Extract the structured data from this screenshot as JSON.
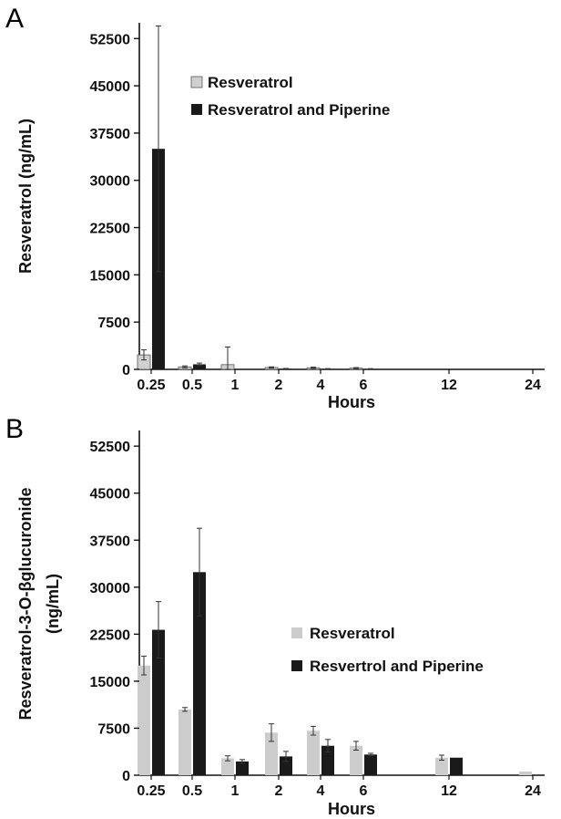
{
  "chart_data": [
    {
      "panel": "A",
      "type": "bar",
      "categories": [
        "0.25",
        "0.5",
        "1",
        "2",
        "4",
        "6",
        "12",
        "24"
      ],
      "xlabel": "Hours",
      "ylabel": "Resveratrol (ng/mL)",
      "ylim": [
        0,
        55000
      ],
      "yticks": [
        "0",
        "7500",
        "15000",
        "22500",
        "30000",
        "37500",
        "45000",
        "52500"
      ],
      "grid": false,
      "legend_position": "top-center",
      "series": [
        {
          "name": "Resveratrol",
          "color": "#d0d0d0",
          "values": [
            2300,
            400,
            750,
            300,
            250,
            200,
            0,
            0
          ],
          "errors": [
            800,
            150,
            2800,
            100,
            100,
            80,
            0,
            0
          ]
        },
        {
          "name": "Resveratrol and Piperine",
          "color": "#1a1a1a",
          "values": [
            35000,
            800,
            0,
            100,
            80,
            80,
            0,
            0
          ],
          "errors": [
            19500,
            200,
            0,
            50,
            40,
            40,
            0,
            0
          ]
        }
      ]
    },
    {
      "panel": "B",
      "type": "bar",
      "categories": [
        "0.25",
        "0.5",
        "1",
        "2",
        "4",
        "6",
        "12",
        "24"
      ],
      "xlabel": "Hours",
      "ylabel": "Resveratrol-3-O-βglucuronide (ng/mL)",
      "ylabel_lines": [
        "Resveratrol-3-O-βglucuronide",
        "(ng/mL)"
      ],
      "ylim": [
        0,
        55000
      ],
      "yticks": [
        "0",
        "7500",
        "15000",
        "22500",
        "30000",
        "37500",
        "45000",
        "52500"
      ],
      "grid": false,
      "legend_position": "right",
      "series": [
        {
          "name": "Resveratrol",
          "color": "#cccccc",
          "values": [
            17500,
            10500,
            2700,
            6800,
            7100,
            4700,
            2800,
            600
          ],
          "errors": [
            1500,
            300,
            400,
            1400,
            700,
            700,
            400,
            0
          ]
        },
        {
          "name": "Resvertrol and Piperine",
          "color": "#1a1a1a",
          "values": [
            23200,
            32400,
            2200,
            3000,
            4700,
            3300,
            2800,
            0
          ],
          "errors": [
            4500,
            7000,
            300,
            800,
            1000,
            200,
            0,
            0
          ]
        }
      ]
    }
  ]
}
